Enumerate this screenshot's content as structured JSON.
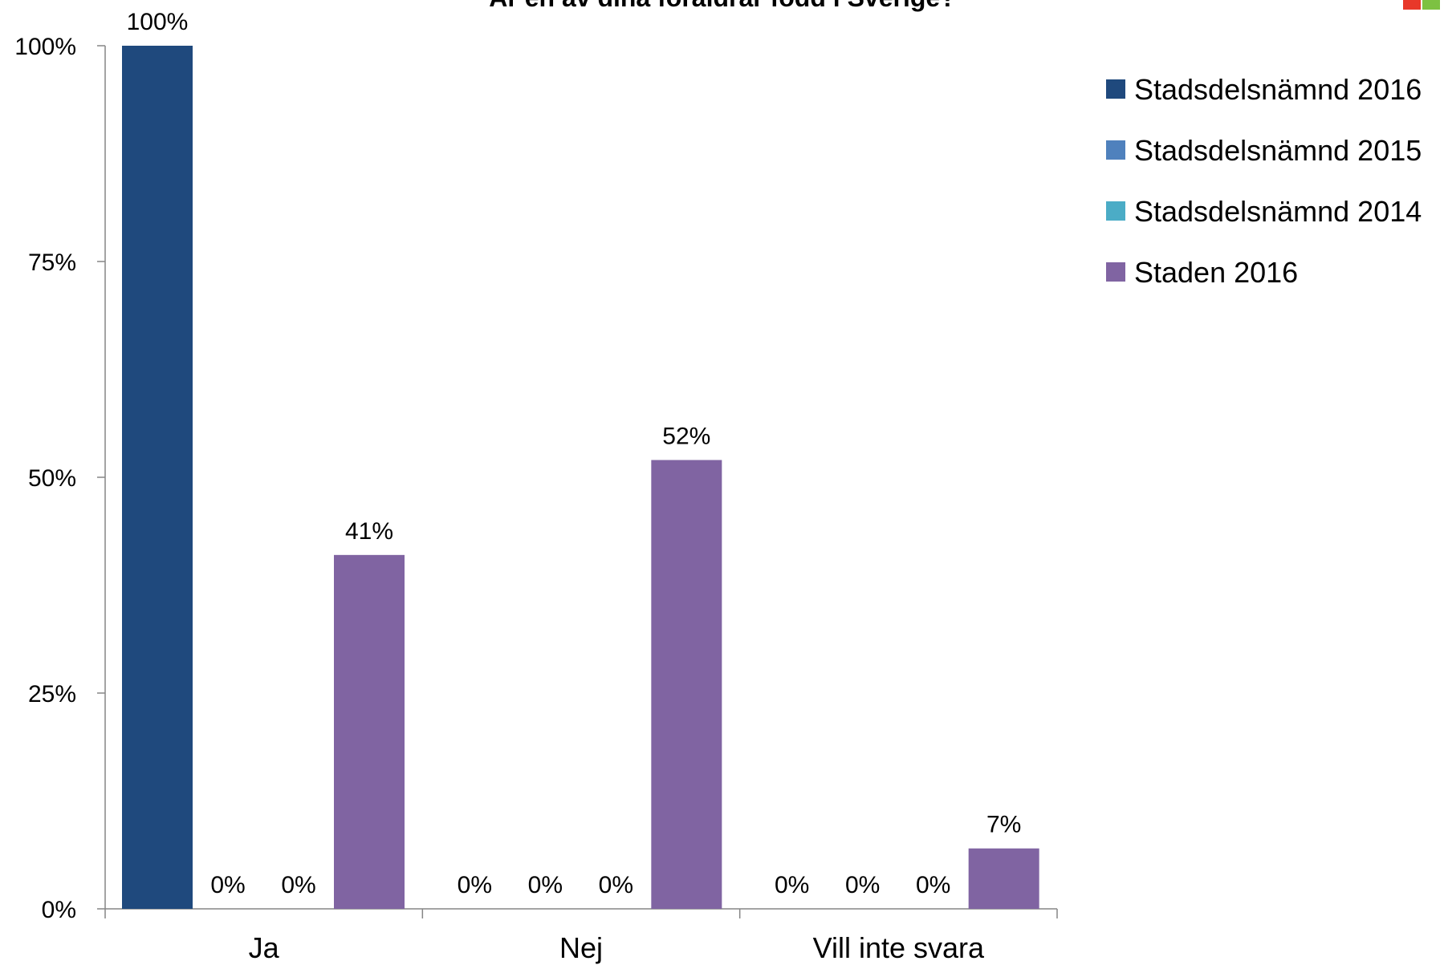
{
  "chart_data": {
    "type": "bar",
    "title": "Är en av dina föräldrar född i Sverige?",
    "categories": [
      "Ja",
      "Nej",
      "Vill inte svara"
    ],
    "series": [
      {
        "name": "Stadsdelsnämnd 2016",
        "color": "#1F497D",
        "values": [
          100,
          0,
          0
        ]
      },
      {
        "name": "Stadsdelsnämnd 2015",
        "color": "#4F81BD",
        "values": [
          0,
          0,
          0
        ]
      },
      {
        "name": "Stadsdelsnämnd 2014",
        "color": "#4BACC6",
        "values": [
          0,
          0,
          0
        ]
      },
      {
        "name": "Staden 2016",
        "color": "#8064A2",
        "values": [
          41,
          52,
          7
        ]
      }
    ],
    "data_labels": [
      [
        "100%",
        "0%",
        "0%",
        "41%"
      ],
      [
        "0%",
        "0%",
        "0%",
        "52%"
      ],
      [
        "0%",
        "0%",
        "0%",
        "7%"
      ]
    ],
    "y_ticks": [
      "0%",
      "25%",
      "50%",
      "75%",
      "100%"
    ],
    "ylim": [
      0,
      100
    ],
    "grid": false,
    "legend_position": "top-right",
    "logo_colors": [
      "#E8382A",
      "#7DC142"
    ]
  }
}
